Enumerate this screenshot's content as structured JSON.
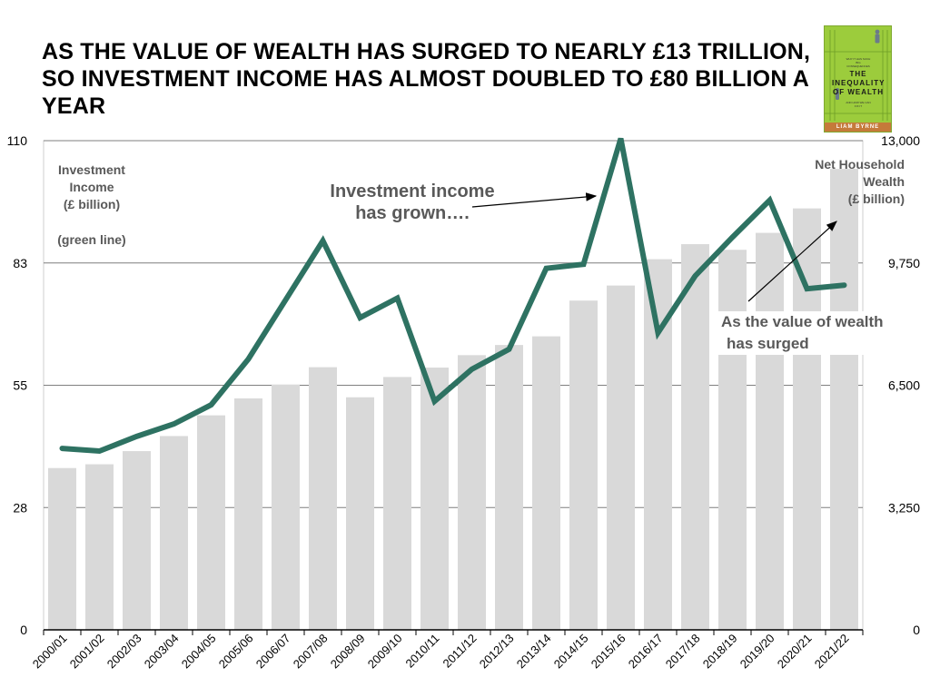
{
  "title": "AS THE VALUE OF WEALTH HAS SURGED TO NEARLY £13 TRILLION, SO INVESTMENT INCOME HAS ALMOST DOUBLED TO £80 BILLION A YEAR",
  "book": {
    "title": "THE INEQUALITY OF WEALTH",
    "author": "LIAM BYRNE",
    "blurb_top": "WHY IT HAS SUCH BIG CONSEQUENCES",
    "blurb_bottom": "AND HOW WE CAN FIX IT",
    "cover_color": "#9ccc3c"
  },
  "chart_data": {
    "type": "bar+line",
    "categories": [
      "2000/01",
      "2001/02",
      "2002/03",
      "2003/04",
      "2004/05",
      "2005/06",
      "2006/07",
      "2007/08",
      "2008/09",
      "2009/10",
      "2010/11",
      "2011/12",
      "2012/13",
      "2013/14",
      "2014/15",
      "2015/16",
      "2016/17",
      "2017/18",
      "2018/19",
      "2019/20",
      "2020/21",
      "2021/22"
    ],
    "left_axis": {
      "title_lines": [
        "Investment",
        "Income",
        "(£ billion)"
      ],
      "note": "(green line)",
      "ticks": [
        "0",
        "28",
        "55",
        "83",
        "110"
      ],
      "ylim": [
        0,
        110
      ]
    },
    "right_axis": {
      "title_lines": [
        "Net Household",
        "Wealth",
        "(£ billion)"
      ],
      "ticks": [
        "0",
        "3,250",
        "6,500",
        "9,750",
        "13,000"
      ],
      "ylim": [
        0,
        13000
      ]
    },
    "bars": {
      "axis": "right",
      "color": "#d9d9d9",
      "values": [
        4300,
        4400,
        4750,
        5150,
        5700,
        6150,
        6520,
        6980,
        6180,
        6720,
        6970,
        7300,
        7570,
        7800,
        8750,
        9150,
        9850,
        10250,
        10100,
        10550,
        11200,
        12250
      ]
    },
    "line": {
      "axis": "left",
      "color": "#2e7262",
      "values": [
        40.8,
        40.2,
        43.5,
        46.3,
        50.6,
        60.9,
        74.2,
        87.5,
        70.2,
        74.6,
        51.4,
        58.6,
        63.1,
        81.3,
        82.2,
        110.5,
        66.8,
        79.6,
        88.3,
        96.6,
        76.7,
        77.5
      ]
    },
    "gridlines": true,
    "annotations": [
      {
        "text_lines": [
          "Investment income",
          "has grown…."
        ],
        "target_category": "2015/16"
      },
      {
        "text_lines": [
          "As the value of wealth",
          "has surged"
        ],
        "target_category": "2021/22"
      }
    ]
  }
}
